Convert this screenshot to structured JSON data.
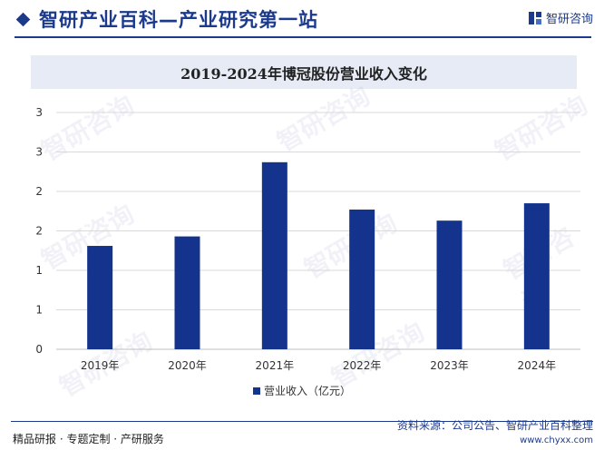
{
  "header": {
    "site_title": "智研产业百科—产业研究第一站",
    "brand_name": "智研咨询"
  },
  "chart_data": {
    "type": "bar",
    "title": "2019-2024年博冠股份营业收入变化",
    "categories": [
      "2019年",
      "2020年",
      "2021年",
      "2022年",
      "2023年",
      "2024年"
    ],
    "series": [
      {
        "name": "营业收入（亿元）",
        "values": [
          1.31,
          1.43,
          2.37,
          1.77,
          1.63,
          1.85
        ]
      }
    ],
    "ytick_values": [
      0,
      0.5,
      1,
      1.5,
      2,
      2.5,
      3
    ],
    "yticks": [
      "0",
      "1",
      "1",
      "2",
      "2",
      "3",
      "3"
    ],
    "ylim": [
      0,
      3
    ],
    "xlabel": "",
    "ylabel": "",
    "grid": true,
    "legend_position": "bottom-center",
    "colors": {
      "bar": "#14338c",
      "grid": "#d9d9d9"
    }
  },
  "footer": {
    "left_text": "精品研报 · 专题定制 · 产研服务",
    "source_text": "资料来源：公司公告、智研产业百科整理",
    "url_text": "www.chyxx.com"
  }
}
